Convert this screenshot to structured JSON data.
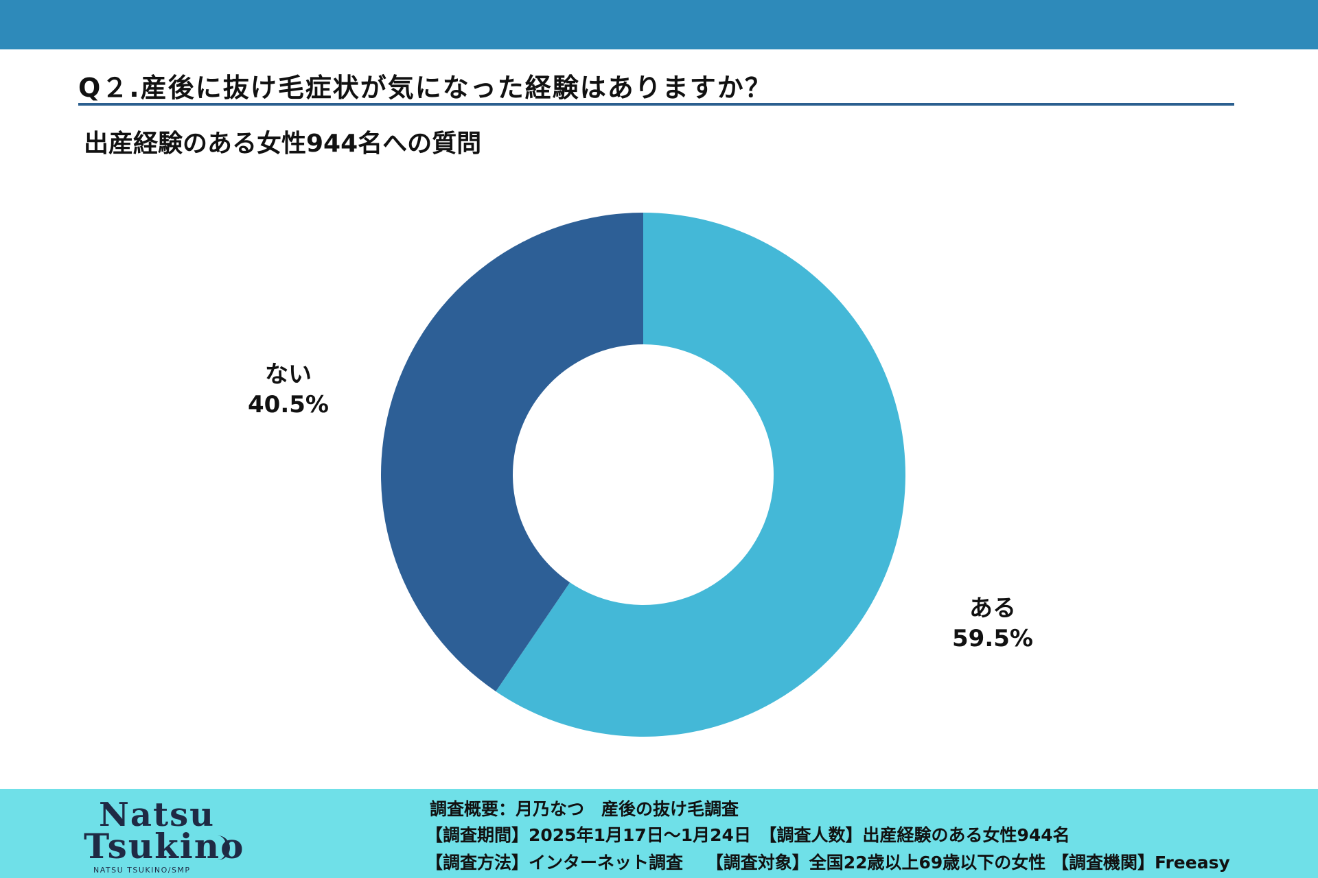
{
  "header": {
    "question": "Q２.産後に抜け毛症状が気になった経験はありますか？",
    "subtitle": "出産経験のある女性944名への質問"
  },
  "chart_data": {
    "type": "pie",
    "variant": "donut",
    "categories": [
      "ある",
      "ない"
    ],
    "values": [
      59.5,
      40.5
    ],
    "labels": [
      "59.5%",
      "40.5%"
    ],
    "colors": [
      "#44b8d7",
      "#2d5f96"
    ],
    "start": "12 o'clock, clockwise"
  },
  "logo": {
    "line1": "Natsu",
    "line2": "Tsukino",
    "sub": "NATSU TSUKINO/SMP"
  },
  "footer": {
    "line1": "調査概要：月乃なつ　産後の抜け毛調査",
    "line2": "【調査期間】2025年1月17日～1月24日　【調査人数】出産経験のある女性944名",
    "line3": "【調査方法】インターネット調査　 【調査対象】全国22歳以上69歳以下の女性 【調査機関】Freeasy"
  },
  "colors": {
    "top_bar": "#2e8aba",
    "footer_bg": "#6fe0e8",
    "rule": "#2b5f8f"
  }
}
